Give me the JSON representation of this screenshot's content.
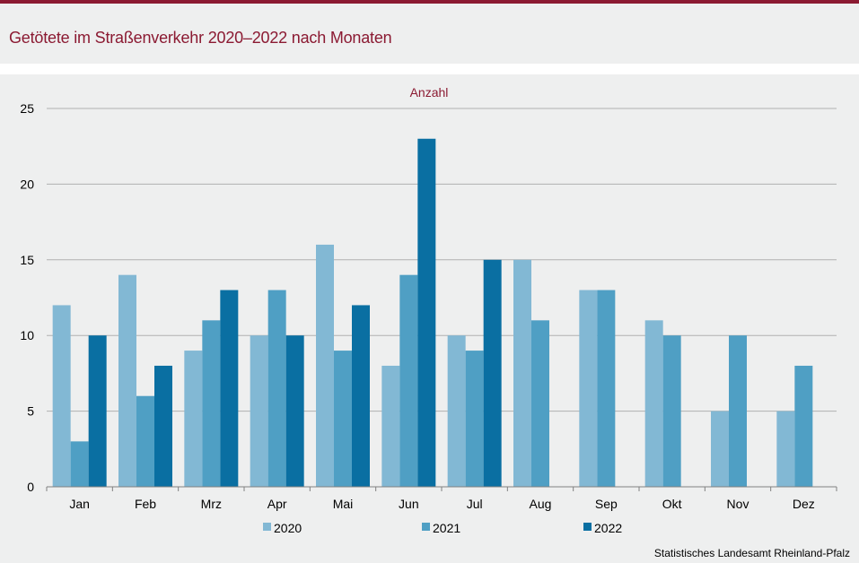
{
  "title": "Getötete im Straßenverkehr 2020–2022 nach Monaten",
  "source": "Statistisches Landesamt  Rheinland-Pfalz",
  "colors": {
    "accent": "#8b1a32",
    "s2020": "#82b8d4",
    "s2021": "#4f9fc4",
    "s2022": "#0a6fa2"
  },
  "chart_data": {
    "type": "bar",
    "ylabel": "Anzahl",
    "xlabel": "",
    "ylim": [
      0,
      25
    ],
    "yticks": [
      0,
      5,
      10,
      15,
      20,
      25
    ],
    "grid": true,
    "legend_position": "bottom",
    "categories": [
      "Jan",
      "Feb",
      "Mrz",
      "Apr",
      "Mai",
      "Jun",
      "Jul",
      "Aug",
      "Sep",
      "Okt",
      "Nov",
      "Dez"
    ],
    "series": [
      {
        "name": "2020",
        "color": "#82b8d4",
        "values": [
          12,
          14,
          9,
          10,
          16,
          8,
          10,
          15,
          13,
          11,
          5,
          5
        ]
      },
      {
        "name": "2021",
        "color": "#4f9fc4",
        "values": [
          3,
          6,
          11,
          13,
          9,
          14,
          9,
          11,
          13,
          10,
          10,
          8
        ]
      },
      {
        "name": "2022",
        "color": "#0a6fa2",
        "values": [
          10,
          8,
          13,
          10,
          12,
          23,
          15,
          null,
          null,
          null,
          null,
          null
        ]
      }
    ]
  }
}
